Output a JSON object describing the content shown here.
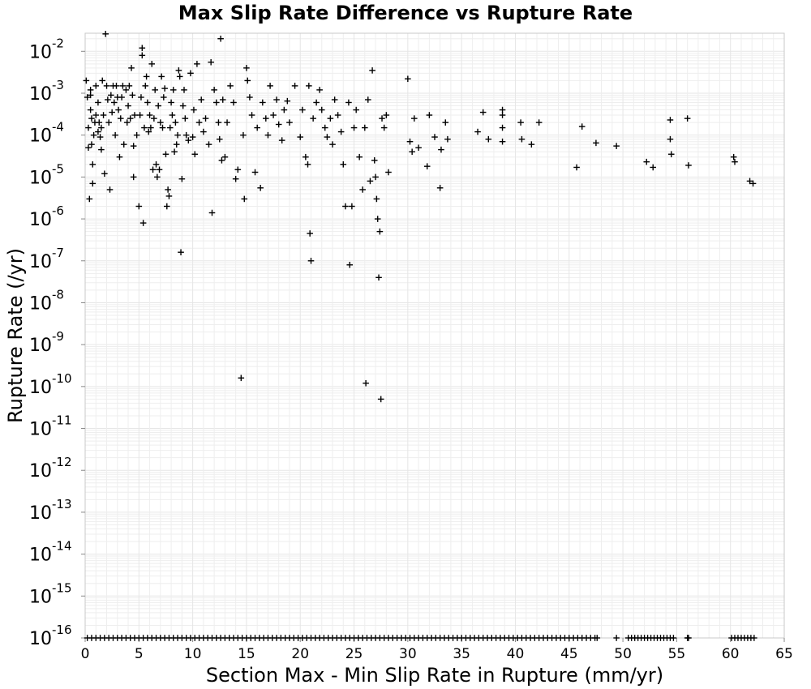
{
  "chart_data": {
    "type": "scatter",
    "title": "Max Slip Rate Difference vs Rupture Rate",
    "xlabel": "Section Max - Min Slip Rate in Rupture (mm/yr)",
    "ylabel": "Rupture Rate (/yr)",
    "xlim": [
      0,
      65
    ],
    "ylim": [
      1e-16,
      0.027
    ],
    "y_scale": "log",
    "grid": true,
    "legend": "none",
    "marker": "plus",
    "marker_color": "#000000",
    "x_ticks": [
      "0",
      "5",
      "10",
      "15",
      "20",
      "25",
      "30",
      "35",
      "40",
      "45",
      "50",
      "55",
      "60",
      "65"
    ],
    "y_ticks": [
      {
        "base": "10",
        "exp": "-16"
      },
      {
        "base": "10",
        "exp": "-15"
      },
      {
        "base": "10",
        "exp": "-14"
      },
      {
        "base": "10",
        "exp": "-13"
      },
      {
        "base": "10",
        "exp": "-12"
      },
      {
        "base": "10",
        "exp": "-11"
      },
      {
        "base": "10",
        "exp": "-10"
      },
      {
        "base": "10",
        "exp": "-9"
      },
      {
        "base": "10",
        "exp": "-8"
      },
      {
        "base": "10",
        "exp": "-7"
      },
      {
        "base": "10",
        "exp": "-6"
      },
      {
        "base": "10",
        "exp": "-5"
      },
      {
        "base": "10",
        "exp": "-4"
      },
      {
        "base": "10",
        "exp": "-3"
      },
      {
        "base": "10",
        "exp": "-2"
      }
    ],
    "points": [
      [
        0.1,
        0.002
      ],
      [
        0.2,
        0.0008
      ],
      [
        0.3,
        0.00015
      ],
      [
        0.3,
        5e-05
      ],
      [
        0.4,
        3e-06
      ],
      [
        0.5,
        0.0009
      ],
      [
        0.5,
        0.0012
      ],
      [
        0.5,
        0.0004
      ],
      [
        0.6,
        0.00025
      ],
      [
        0.6,
        6e-05
      ],
      [
        0.7,
        2e-05
      ],
      [
        0.7,
        7e-06
      ],
      [
        0.8,
        0.0001
      ],
      [
        0.9,
        0.0002
      ],
      [
        1.0,
        0.0003
      ],
      [
        1.0,
        0.0015
      ],
      [
        1.2,
        0.0006
      ],
      [
        1.2,
        0.00012
      ],
      [
        1.3,
        0.0002
      ],
      [
        1.4,
        9e-05
      ],
      [
        1.5,
        0.00015
      ],
      [
        1.5,
        4.5e-05
      ],
      [
        1.6,
        0.002
      ],
      [
        1.7,
        0.0003
      ],
      [
        1.8,
        1.2e-05
      ],
      [
        1.9,
        0.026
      ],
      [
        2.0,
        0.0015
      ],
      [
        2.1,
        0.0007
      ],
      [
        2.2,
        0.0002
      ],
      [
        2.3,
        5e-06
      ],
      [
        2.4,
        0.0009
      ],
      [
        2.5,
        0.00035
      ],
      [
        2.6,
        0.0015
      ],
      [
        2.7,
        0.0006
      ],
      [
        2.8,
        0.0001
      ],
      [
        2.9,
        0.0015
      ],
      [
        3.0,
        0.0008
      ],
      [
        3.1,
        0.0004
      ],
      [
        3.2,
        3e-05
      ],
      [
        3.3,
        0.00025
      ],
      [
        3.4,
        0.0008
      ],
      [
        3.5,
        0.0015
      ],
      [
        3.6,
        6e-05
      ],
      [
        3.8,
        0.0012
      ],
      [
        3.9,
        0.0002
      ],
      [
        4.0,
        0.0005
      ],
      [
        4.1,
        0.0015
      ],
      [
        4.2,
        0.00025
      ],
      [
        4.3,
        0.004
      ],
      [
        4.4,
        0.0009
      ],
      [
        4.5,
        1e-05
      ],
      [
        4.5,
        5.5e-05
      ],
      [
        4.6,
        0.0003
      ],
      [
        4.8,
        0.0001
      ],
      [
        5.0,
        2e-06
      ],
      [
        5.1,
        0.0003
      ],
      [
        5.2,
        0.0008
      ],
      [
        5.3,
        0.012
      ],
      [
        5.3,
        0.008
      ],
      [
        5.4,
        8e-07
      ],
      [
        5.5,
        0.00015
      ],
      [
        5.6,
        0.0015
      ],
      [
        5.7,
        0.0025
      ],
      [
        5.8,
        0.0006
      ],
      [
        5.9,
        0.00012
      ],
      [
        6.0,
        0.0003
      ],
      [
        6.1,
        0.00015
      ],
      [
        6.2,
        0.005
      ],
      [
        6.3,
        1.5e-05
      ],
      [
        6.4,
        0.00025
      ],
      [
        6.5,
        0.0012
      ],
      [
        6.6,
        2e-05
      ],
      [
        6.7,
        1e-05
      ],
      [
        6.8,
        0.0005
      ],
      [
        6.9,
        1.5e-05
      ],
      [
        7.0,
        0.0002
      ],
      [
        7.1,
        0.0025
      ],
      [
        7.2,
        0.00015
      ],
      [
        7.3,
        0.0008
      ],
      [
        7.4,
        0.0013
      ],
      [
        7.5,
        3.5e-05
      ],
      [
        7.6,
        2e-06
      ],
      [
        7.7,
        5e-06
      ],
      [
        7.8,
        3.5e-06
      ],
      [
        7.9,
        0.00015
      ],
      [
        8.0,
        0.0006
      ],
      [
        8.1,
        0.0003
      ],
      [
        8.2,
        0.0012
      ],
      [
        8.3,
        4e-05
      ],
      [
        8.4,
        0.0002
      ],
      [
        8.5,
        6e-05
      ],
      [
        8.6,
        0.0001
      ],
      [
        8.7,
        0.0035
      ],
      [
        8.8,
        0.0025
      ],
      [
        8.9,
        1.6e-07
      ],
      [
        9.0,
        9e-06
      ],
      [
        9.1,
        0.0005
      ],
      [
        9.2,
        0.0012
      ],
      [
        9.3,
        0.00025
      ],
      [
        9.4,
        0.0001
      ],
      [
        9.6,
        7.5e-05
      ],
      [
        9.8,
        0.003
      ],
      [
        10.0,
        9e-05
      ],
      [
        10.1,
        0.0004
      ],
      [
        10.2,
        3.5e-05
      ],
      [
        10.4,
        0.005
      ],
      [
        10.6,
        0.0002
      ],
      [
        10.8,
        0.0007
      ],
      [
        11.0,
        0.00012
      ],
      [
        11.2,
        0.00025
      ],
      [
        11.5,
        6e-05
      ],
      [
        11.7,
        0.0055
      ],
      [
        11.8,
        1.4e-06
      ],
      [
        12.0,
        0.0012
      ],
      [
        12.2,
        0.0006
      ],
      [
        12.4,
        0.0002
      ],
      [
        12.5,
        8e-05
      ],
      [
        12.6,
        0.02
      ],
      [
        12.7,
        2.5e-05
      ],
      [
        12.8,
        0.0007
      ],
      [
        13.0,
        3e-05
      ],
      [
        13.2,
        0.0002
      ],
      [
        13.5,
        0.0015
      ],
      [
        13.8,
        0.0006
      ],
      [
        14.0,
        9e-06
      ],
      [
        14.2,
        1.5e-05
      ],
      [
        14.5,
        1.6e-10
      ],
      [
        14.7,
        0.0001
      ],
      [
        14.8,
        3e-06
      ],
      [
        15.0,
        0.004
      ],
      [
        15.1,
        0.002
      ],
      [
        15.3,
        0.0008
      ],
      [
        15.5,
        0.0003
      ],
      [
        15.8,
        1.3e-05
      ],
      [
        16.0,
        0.00015
      ],
      [
        16.3,
        5.5e-06
      ],
      [
        16.5,
        0.0006
      ],
      [
        16.8,
        0.00025
      ],
      [
        17.0,
        0.0001
      ],
      [
        17.2,
        0.0015
      ],
      [
        17.5,
        0.0003
      ],
      [
        17.8,
        0.0007
      ],
      [
        18.0,
        0.00018
      ],
      [
        18.3,
        7.5e-05
      ],
      [
        18.5,
        0.0004
      ],
      [
        18.8,
        0.00065
      ],
      [
        19.0,
        0.0002
      ],
      [
        19.5,
        0.0015
      ],
      [
        20.0,
        9e-05
      ],
      [
        20.2,
        0.0004
      ],
      [
        20.5,
        3e-05
      ],
      [
        20.7,
        2e-05
      ],
      [
        20.8,
        0.0015
      ],
      [
        20.9,
        4.5e-07
      ],
      [
        21.0,
        1e-07
      ],
      [
        21.2,
        0.00025
      ],
      [
        21.5,
        0.0006
      ],
      [
        21.8,
        0.0012
      ],
      [
        22.0,
        0.0004
      ],
      [
        22.3,
        0.00015
      ],
      [
        22.5,
        9e-05
      ],
      [
        22.8,
        0.00025
      ],
      [
        23.0,
        6e-05
      ],
      [
        23.2,
        0.0007
      ],
      [
        23.5,
        0.0003
      ],
      [
        23.8,
        0.00012
      ],
      [
        24.0,
        2e-05
      ],
      [
        24.2,
        2e-06
      ],
      [
        24.5,
        0.0006
      ],
      [
        24.6,
        8e-08
      ],
      [
        24.8,
        2e-06
      ],
      [
        25.0,
        0.00015
      ],
      [
        25.2,
        0.0004
      ],
      [
        25.5,
        3e-05
      ],
      [
        25.8,
        5e-06
      ],
      [
        26.0,
        0.00015
      ],
      [
        26.1,
        1.2e-10
      ],
      [
        26.3,
        0.0007
      ],
      [
        26.5,
        8e-06
      ],
      [
        26.7,
        0.0035
      ],
      [
        26.9,
        2.5e-05
      ],
      [
        27.0,
        1e-05
      ],
      [
        27.1,
        3e-06
      ],
      [
        27.2,
        1e-06
      ],
      [
        27.3,
        4e-08
      ],
      [
        27.4,
        5e-07
      ],
      [
        27.5,
        5e-11
      ],
      [
        27.6,
        0.00025
      ],
      [
        27.8,
        0.00015
      ],
      [
        28.0,
        0.0003
      ],
      [
        28.2,
        1.3e-05
      ],
      [
        30.0,
        0.0022
      ],
      [
        30.2,
        7e-05
      ],
      [
        30.4,
        4e-05
      ],
      [
        30.6,
        0.00025
      ],
      [
        31.0,
        5e-05
      ],
      [
        31.8,
        1.8e-05
      ],
      [
        32.0,
        0.0003
      ],
      [
        32.5,
        9e-05
      ],
      [
        33.0,
        5.5e-06
      ],
      [
        33.1,
        4.5e-05
      ],
      [
        33.5,
        0.0002
      ],
      [
        33.7,
        8e-05
      ],
      [
        36.5,
        0.00012
      ],
      [
        37.0,
        0.00035
      ],
      [
        37.5,
        8e-05
      ],
      [
        38.8,
        0.0003
      ],
      [
        38.8,
        0.00015
      ],
      [
        38.8,
        7e-05
      ],
      [
        38.8,
        0.0004
      ],
      [
        40.5,
        0.0002
      ],
      [
        40.6,
        8e-05
      ],
      [
        41.5,
        6e-05
      ],
      [
        42.2,
        0.0002
      ],
      [
        45.7,
        1.7e-05
      ],
      [
        46.2,
        0.00016
      ],
      [
        47.5,
        6.5e-05
      ],
      [
        49.4,
        5.5e-05
      ],
      [
        52.2,
        2.3e-05
      ],
      [
        52.8,
        1.7e-05
      ],
      [
        54.4,
        0.00023
      ],
      [
        54.4,
        8e-05
      ],
      [
        54.5,
        3.5e-05
      ],
      [
        56.0,
        0.00025
      ],
      [
        56.1,
        1.9e-05
      ],
      [
        60.3,
        3e-05
      ],
      [
        60.4,
        2.3e-05
      ],
      [
        61.8,
        8e-06
      ],
      [
        62.1,
        7e-06
      ]
    ],
    "floor_points_x": [
      0.2,
      0.6,
      1.0,
      1.4,
      1.8,
      2.2,
      2.6,
      3.0,
      3.4,
      3.8,
      4.2,
      4.6,
      5.0,
      5.4,
      5.8,
      6.2,
      6.6,
      7.0,
      7.4,
      7.8,
      8.2,
      8.6,
      9.0,
      9.4,
      9.8,
      10.2,
      10.6,
      11.0,
      11.4,
      11.8,
      12.2,
      12.6,
      13.0,
      13.4,
      13.8,
      14.2,
      14.6,
      15.0,
      15.4,
      15.8,
      16.2,
      16.6,
      17.0,
      17.4,
      17.8,
      18.2,
      18.6,
      19.0,
      19.4,
      19.8,
      20.2,
      20.6,
      21.0,
      21.4,
      21.8,
      22.2,
      22.6,
      23.0,
      23.4,
      23.8,
      24.2,
      24.6,
      25.0,
      25.4,
      25.8,
      26.2,
      26.6,
      27.0,
      27.4,
      27.8,
      28.2,
      28.6,
      29.0,
      29.4,
      29.8,
      30.2,
      30.6,
      31.0,
      31.4,
      31.8,
      32.2,
      32.6,
      33.0,
      33.4,
      33.8,
      34.2,
      34.6,
      35.0,
      35.4,
      35.8,
      36.2,
      36.6,
      37.0,
      37.4,
      37.8,
      38.2,
      38.6,
      39.0,
      39.4,
      39.8,
      40.2,
      40.6,
      41.0,
      41.4,
      41.8,
      42.2,
      42.6,
      43.0,
      43.4,
      43.8,
      44.2,
      44.6,
      45.0,
      45.4,
      45.8,
      46.2,
      46.6,
      47.0,
      47.4,
      47.6,
      49.4,
      50.5,
      50.8,
      51.1,
      51.4,
      51.7,
      52.0,
      52.3,
      52.6,
      52.9,
      53.2,
      53.5,
      53.8,
      54.1,
      54.4,
      54.7,
      56.0,
      56.1,
      60.1,
      60.4,
      60.7,
      61.0,
      61.3,
      61.6,
      61.9,
      62.2
    ]
  }
}
